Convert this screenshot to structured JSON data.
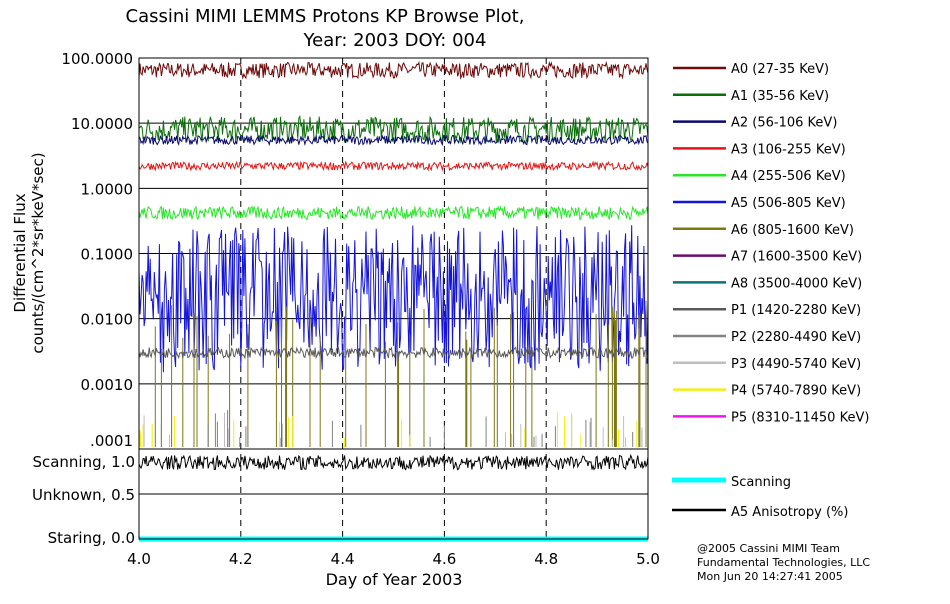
{
  "chart_data": {
    "type": "line",
    "title": "Cassini MIMI LEMMS Protons KP Browse Plot,",
    "subtitle": "Year: 2003 DOY: 004",
    "xlabel": "Day of Year 2003",
    "ylabel": [
      "Differential Flux",
      "counts/(cm^2*sr*keV*sec)"
    ],
    "xlim": [
      4.0,
      5.0
    ],
    "xticks": [
      "4.0",
      "4.2",
      "4.4",
      "4.6",
      "4.8",
      "5.0"
    ],
    "ylim": [
      0.0001,
      100
    ],
    "yscale": "log",
    "yticks": [
      "100.0000",
      "10.0000",
      "1.0000",
      "0.1000",
      "0.0100",
      "0.0010",
      ".0001"
    ],
    "grid": true,
    "legend_placement": "right",
    "series": [
      {
        "name": "A0 (27-35 KeV)",
        "color": "#6e0a0a",
        "level": 65,
        "spread": 0.12
      },
      {
        "name": "A1 (35-56 KeV)",
        "color": "#0a6e0a",
        "level": 8,
        "spread": 0.2
      },
      {
        "name": "A2 (56-106 KeV)",
        "color": "#0a0a6e",
        "level": 5.5,
        "spread": 0.07
      },
      {
        "name": "A3 (106-255 KeV)",
        "color": "#e61414",
        "level": 2.2,
        "spread": 0.06
      },
      {
        "name": "A4 (255-506 KeV)",
        "color": "#2ae62a",
        "level": 0.42,
        "spread": 0.1
      },
      {
        "name": "A5 (506-805 KeV)",
        "color": "#1414dc",
        "level": 0.03,
        "spread": 0.6
      },
      {
        "name": "A6 (805-1600 KeV)",
        "color": "#7d7814",
        "level": 0.003,
        "spread": 0.5
      },
      {
        "name": "A7 (1600-3500 KeV)",
        "color": "#6e0a6e",
        "level": null,
        "spread": 0
      },
      {
        "name": "A8 (3500-4000 KeV)",
        "color": "#0a7373",
        "level": null,
        "spread": 0
      },
      {
        "name": "P1 (1420-2280 KeV)",
        "color": "#5a5a5a",
        "level": 0.003,
        "spread": 0.08
      },
      {
        "name": "P2 (2280-4490 KeV)",
        "color": "#828282",
        "level": 0.00015,
        "spread": 0.3
      },
      {
        "name": "P3 (4490-5740 KeV)",
        "color": "#bebebe",
        "level": 0.00013,
        "spread": 0.2
      },
      {
        "name": "P4 (5740-7890 KeV)",
        "color": "#f0f014",
        "level": 0.00013,
        "spread": 0.2
      },
      {
        "name": "P5 (8310-11450 KeV)",
        "color": "#f014f0",
        "level": null,
        "spread": 0
      }
    ],
    "lower_panel": {
      "yticks": [
        "Scanning, 1.0",
        "Unknown, 0.5",
        "Staring, 0.0"
      ],
      "ylim": [
        0,
        1
      ],
      "series": [
        {
          "name": "Scanning",
          "color": "#00ffff",
          "level": 0.0
        },
        {
          "name": "A5 Anisotropy (%)",
          "color": "#000000",
          "level": 0.85
        }
      ]
    }
  },
  "credits": [
    "@2005 Cassini MIMI Team",
    "Fundamental Technologies, LLC",
    "Mon Jun 20 14:27:41 2005"
  ]
}
